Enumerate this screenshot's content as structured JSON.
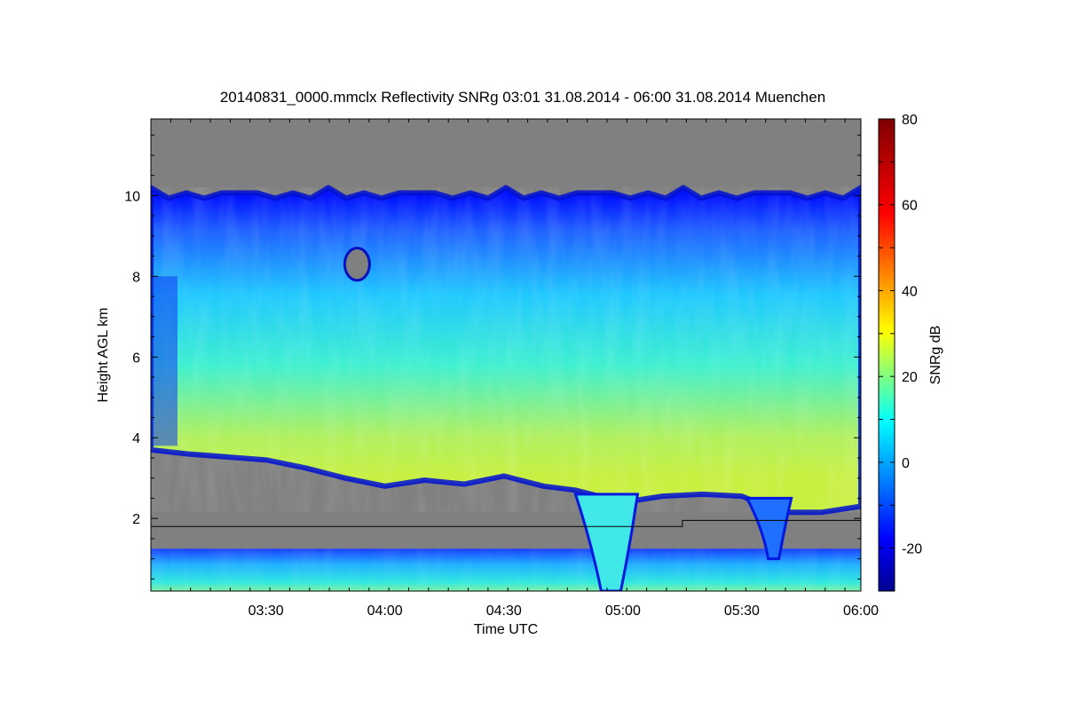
{
  "chart_data": {
    "type": "heatmap",
    "title": "20140831_0000.mmclx Reflectivity SNRg   03:01 31.08.2014 - 06:00 31.08.2014 Muenchen",
    "xlabel": "Time UTC",
    "ylabel": "Height AGL km",
    "colorbar_label": "SNRg dB",
    "x_range": [
      "03:01",
      "06:00"
    ],
    "x_ticks": [
      "03:30",
      "04:00",
      "04:30",
      "05:00",
      "05:30",
      "06:00"
    ],
    "y_range": [
      0.2,
      11.9
    ],
    "y_ticks": [
      2,
      4,
      6,
      8,
      10
    ],
    "colorbar_range": [
      -30,
      80
    ],
    "colorbar_ticks": [
      -20,
      0,
      20,
      40,
      60,
      80
    ],
    "colormap": "jet",
    "no_data_color": "#808080",
    "echo_top_km": 10.0,
    "cloud_base_km": {
      "times": [
        "03:01",
        "03:10",
        "03:30",
        "03:40",
        "03:50",
        "04:00",
        "04:10",
        "04:20",
        "04:30",
        "04:40",
        "04:48",
        "05:00",
        "05:10",
        "05:20",
        "05:30",
        "05:40",
        "05:50",
        "06:00"
      ],
      "heights": [
        3.7,
        3.6,
        3.45,
        3.25,
        3.0,
        2.8,
        2.95,
        2.85,
        3.05,
        2.8,
        2.7,
        2.4,
        2.55,
        2.6,
        2.55,
        2.15,
        2.15,
        2.3
      ]
    },
    "reference_line_km": [
      {
        "from": "03:01",
        "to": "05:15",
        "height": 1.8
      },
      {
        "from": "05:15",
        "to": "06:00",
        "height": 1.95
      }
    ],
    "features": [
      {
        "name": "precipitation shaft",
        "time": "04:57",
        "from_km": 0.2,
        "to_km": 2.6
      },
      {
        "name": "precipitation shaft",
        "time": "05:38",
        "from_km": 1.0,
        "to_km": 2.5
      },
      {
        "name": "no-signal pocket",
        "time": "03:53",
        "from_km": 7.9,
        "to_km": 8.7
      }
    ]
  }
}
